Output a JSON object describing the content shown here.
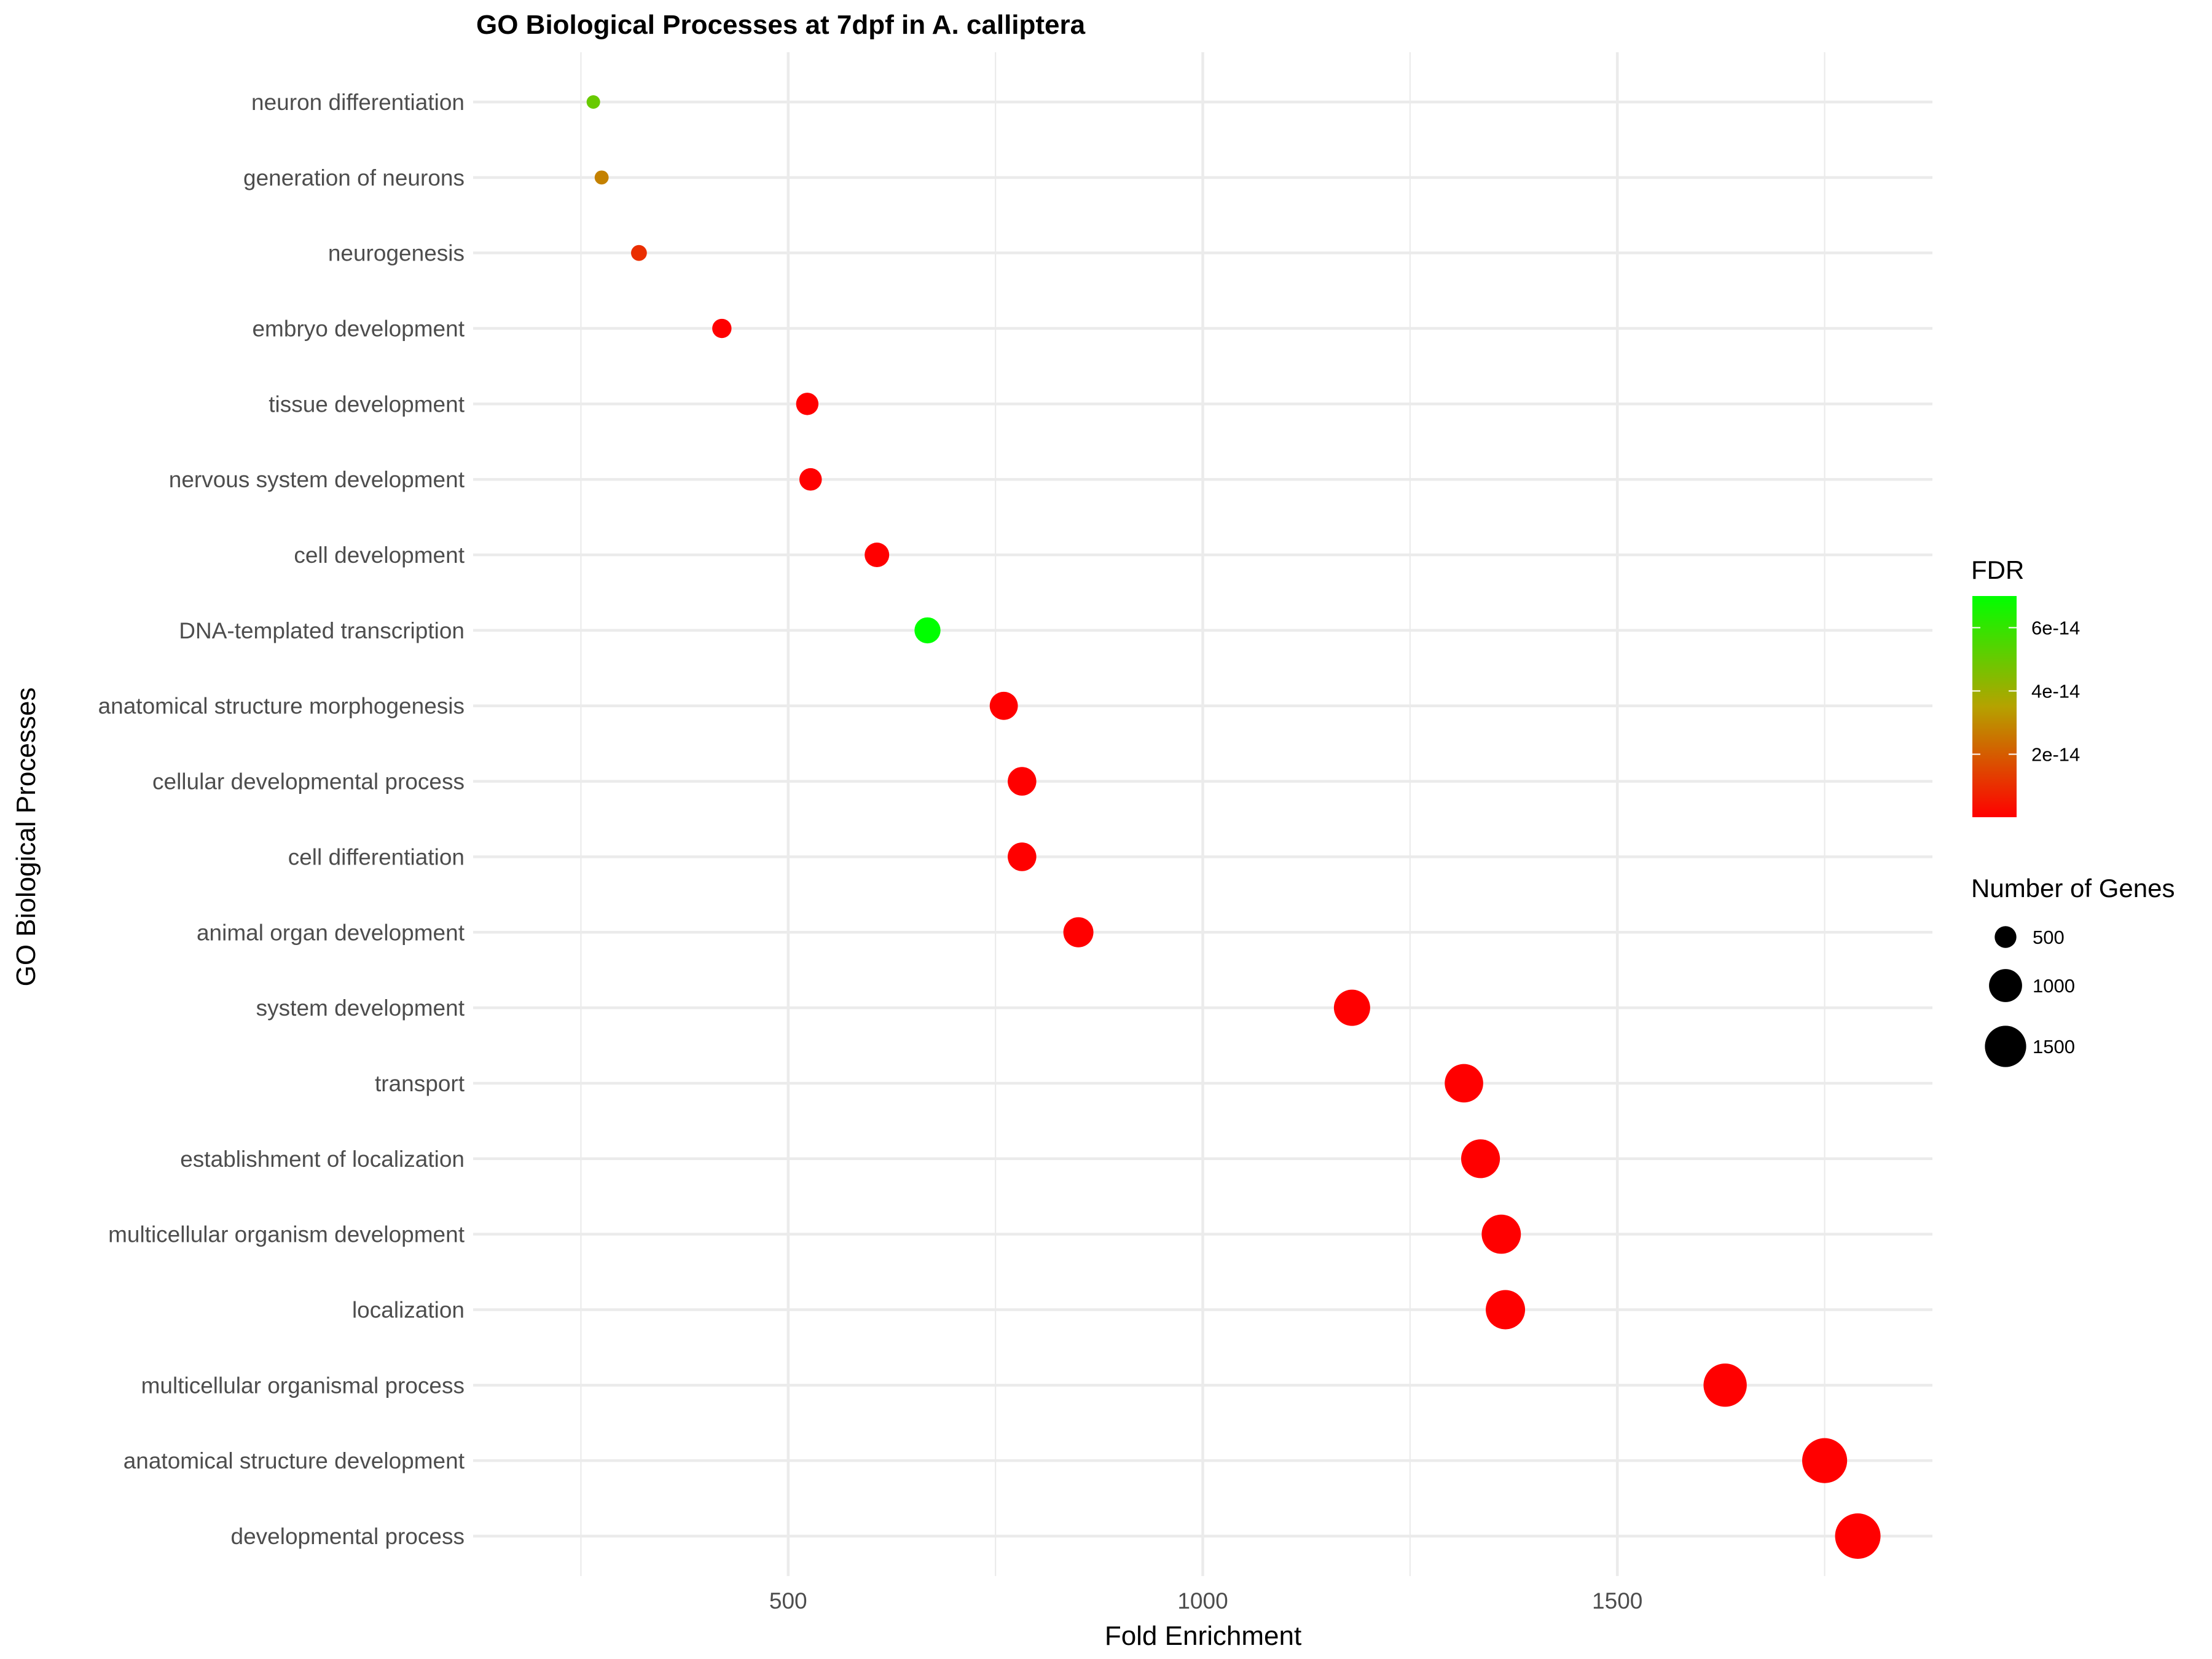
{
  "chart_data": {
    "type": "scatter",
    "title": "GO Biological Processes at 7dpf in A. calliptera",
    "xlabel": "Fold Enrichment",
    "ylabel": "GO Biological Processes",
    "xlim": [
      120,
      1880
    ],
    "x_ticks": [
      500,
      1000,
      1500
    ],
    "x_tick_labels": [
      "500",
      "1000",
      "1500"
    ],
    "grid": true,
    "legend_position": "right",
    "categories": [
      "neuron differentiation",
      "generation of neurons",
      "neurogenesis",
      "embryo development",
      "tissue development",
      "nervous system development",
      "cell development",
      "DNA-templated transcription",
      "anatomical structure morphogenesis",
      "cellular developmental process",
      "cell differentiation",
      "animal organ development",
      "system development",
      "transport",
      "establishment of localization",
      "multicellular organism development",
      "localization",
      "multicellular organismal process",
      "anatomical structure development",
      "developmental process"
    ],
    "fold_enrichment": [
      265,
      275,
      320,
      420,
      523,
      527,
      607,
      668,
      760,
      782,
      782,
      850,
      1180,
      1315,
      1335,
      1360,
      1365,
      1630,
      1750,
      1790
    ],
    "number_of_genes": [
      265,
      275,
      320,
      420,
      523,
      527,
      607,
      668,
      760,
      782,
      782,
      850,
      1180,
      1315,
      1335,
      1360,
      1365,
      1630,
      1750,
      1790
    ],
    "fdr": [
      5e-14,
      2.8e-14,
      1e-14,
      1e-16,
      1e-16,
      1e-16,
      1e-16,
      7e-14,
      1e-16,
      1e-16,
      1e-16,
      1e-16,
      1e-16,
      1e-16,
      1e-16,
      1e-16,
      1e-16,
      1e-16,
      1e-16,
      1e-16
    ],
    "fdr_legend": {
      "title": "FDR",
      "range": [
        1e-16,
        7e-14
      ],
      "ticks": [
        2e-14,
        4e-14,
        6e-14
      ],
      "tick_labels": [
        "2e-14",
        "4e-14",
        "6e-14"
      ],
      "color_low": "#ff0000",
      "color_high": "#00ff00"
    },
    "size_legend": {
      "title": "Number of Genes",
      "values": [
        500,
        1000,
        1500
      ],
      "labels": [
        "500",
        "1000",
        "1500"
      ]
    }
  }
}
